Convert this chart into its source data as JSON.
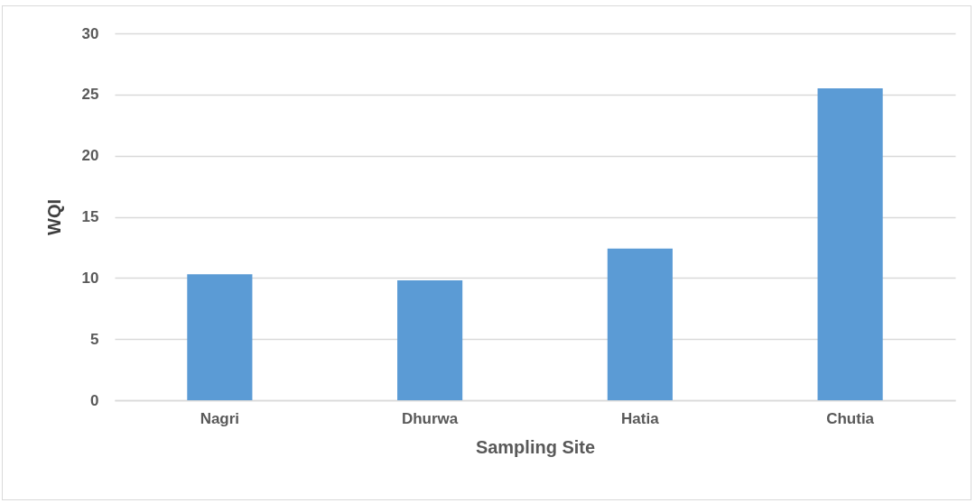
{
  "chart_data": {
    "type": "bar",
    "xlabel": "Sampling Site",
    "ylabel": "WQI",
    "categories": [
      "Nagri",
      "Dhurwa",
      "Hatia",
      "Chutia"
    ],
    "values": [
      10.3,
      9.8,
      12.4,
      25.5
    ],
    "color": "#5b9bd5",
    "ylim": [
      0,
      30
    ],
    "yticks": [
      0,
      5,
      10,
      15,
      20,
      25,
      30
    ],
    "grid": "y"
  }
}
